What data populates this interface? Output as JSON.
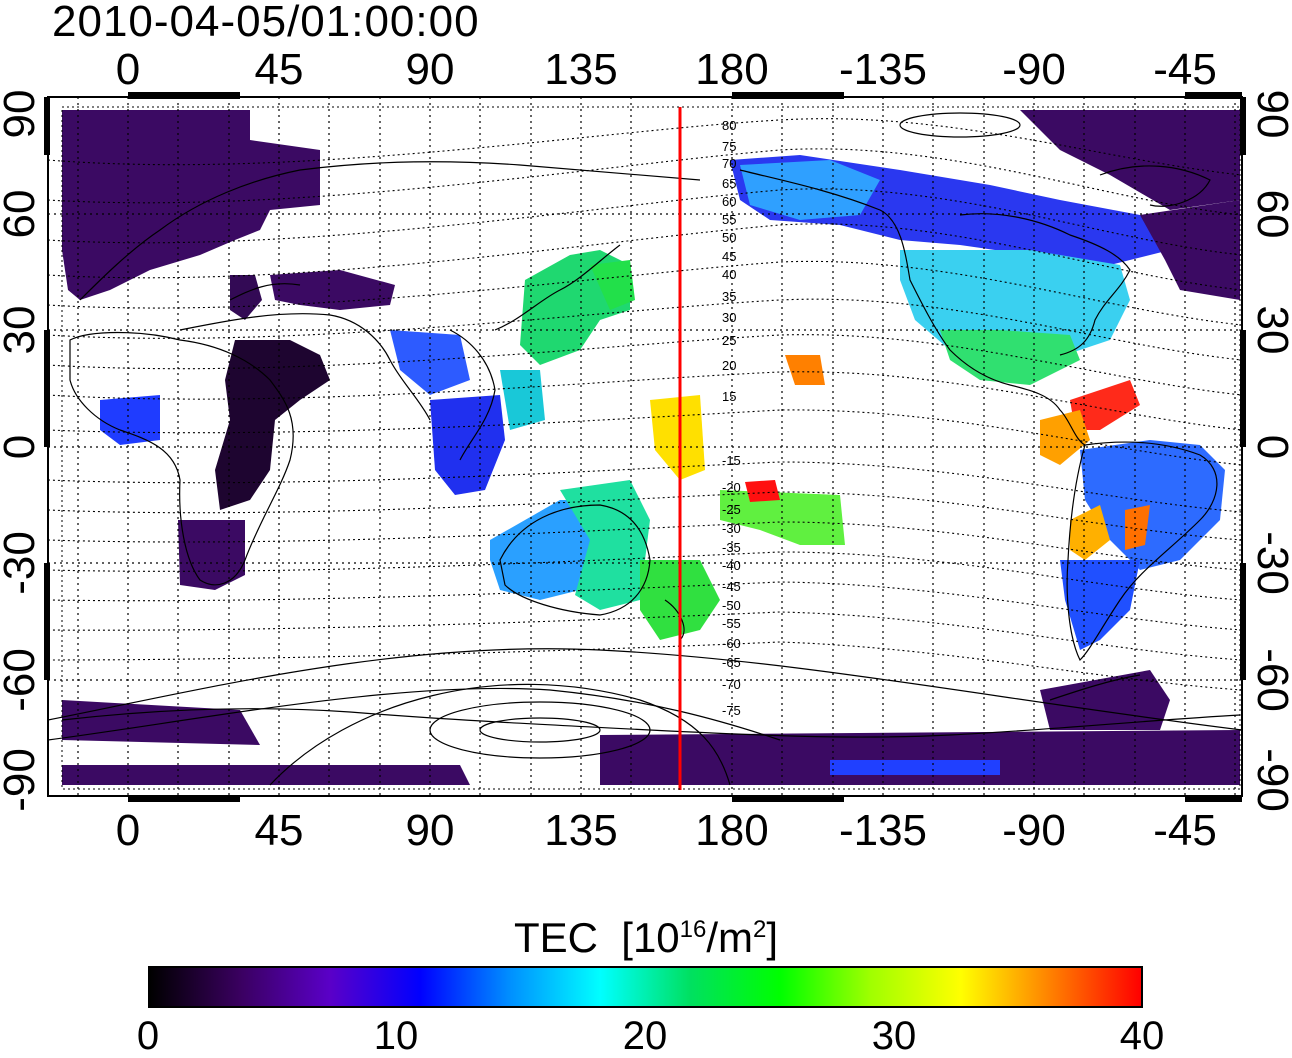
{
  "timestamp": "2010-04-05/01:00:00",
  "lon_ticks": [
    "0",
    "45",
    "90",
    "135",
    "180",
    "-135",
    "-90",
    "-45"
  ],
  "lat_ticks": [
    "90",
    "60",
    "30",
    "0",
    "-30",
    "-60",
    "-90"
  ],
  "contour_labels": [
    "80",
    "75",
    "70",
    "65",
    "60",
    "55",
    "50",
    "45",
    "40",
    "35",
    "30",
    "25",
    "20",
    "15",
    "-15",
    "-20",
    "-25",
    "-30",
    "-35",
    "-40",
    "-45",
    "-50",
    "-55",
    "-60",
    "-65",
    "-70",
    "-75"
  ],
  "colorbar": {
    "title": "TEC",
    "unit_prefix": "[10",
    "unit_exp": "16",
    "unit_mid": "/m",
    "unit_exp2": "2",
    "unit_suffix": "]",
    "tick_labels": [
      "0",
      "10",
      "20",
      "30",
      "40"
    ],
    "min": 0,
    "max": 40,
    "stops": [
      "#000000",
      "#3a0060",
      "#5a00c8",
      "#0000ff",
      "#0090ff",
      "#00ffff",
      "#00e060",
      "#00ff00",
      "#a0ff00",
      "#ffff00",
      "#ff8000",
      "#ff0000"
    ]
  },
  "map": {
    "lon_range": [
      -25,
      325
    ],
    "lat_range": [
      -90,
      90
    ],
    "meridian_line_lon": 165,
    "meridian_line_color": "#ff0000",
    "background": "#ffffff"
  }
}
